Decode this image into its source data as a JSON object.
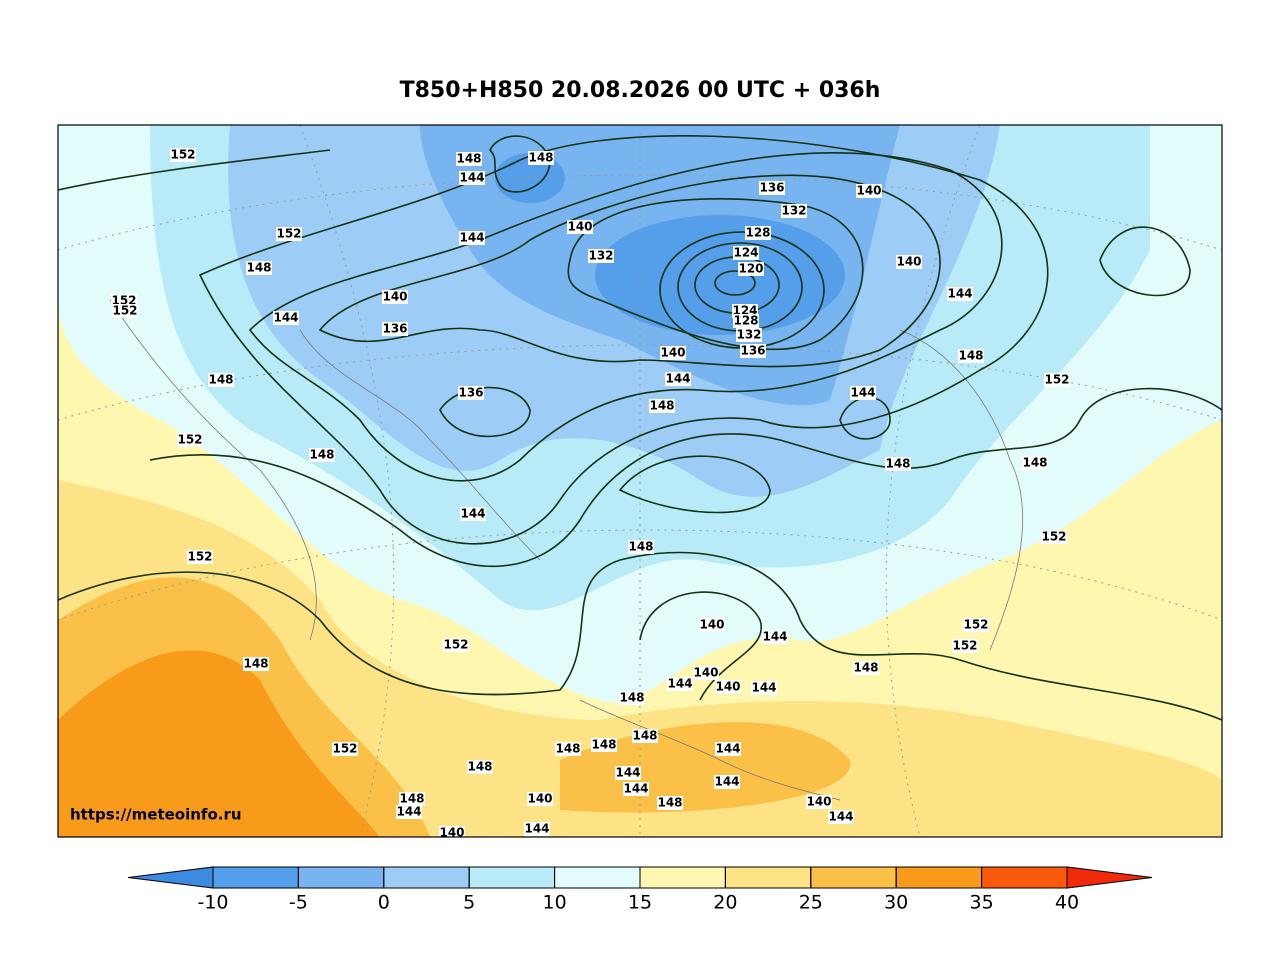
{
  "title": "T850+H850 20.08.2026 00 UTC + 036h",
  "watermark": "https://meteoinfo.ru",
  "colorbar": {
    "ticks": [
      -10,
      -5,
      0,
      5,
      10,
      15,
      20,
      25,
      30,
      35,
      40
    ],
    "colors": [
      "#3d8be0",
      "#559ee9",
      "#78b5f0",
      "#9dcdf6",
      "#b8ebf7",
      "#e2fcfc",
      "#fff6b0",
      "#fde385",
      "#fbc048",
      "#f99b1a",
      "#fb5a0c",
      "#f22a0a"
    ]
  },
  "contour_labels": [
    152,
    148,
    148,
    144,
    140,
    132,
    136,
    132,
    128,
    124,
    120,
    124,
    128,
    132,
    136,
    140,
    140,
    144,
    148,
    152,
    144,
    148,
    148,
    152,
    152,
    152,
    148,
    144,
    140,
    140,
    140,
    144,
    144,
    148,
    148,
    144,
    148,
    140,
    136,
    144,
    148,
    152,
    148,
    144,
    140,
    136,
    148,
    152,
    144,
    152,
    152,
    152,
    148,
    152,
    152,
    148,
    148,
    144,
    140,
    148,
    148,
    148,
    144,
    144,
    144,
    144,
    140,
    148,
    144,
    140,
    144
  ]
}
